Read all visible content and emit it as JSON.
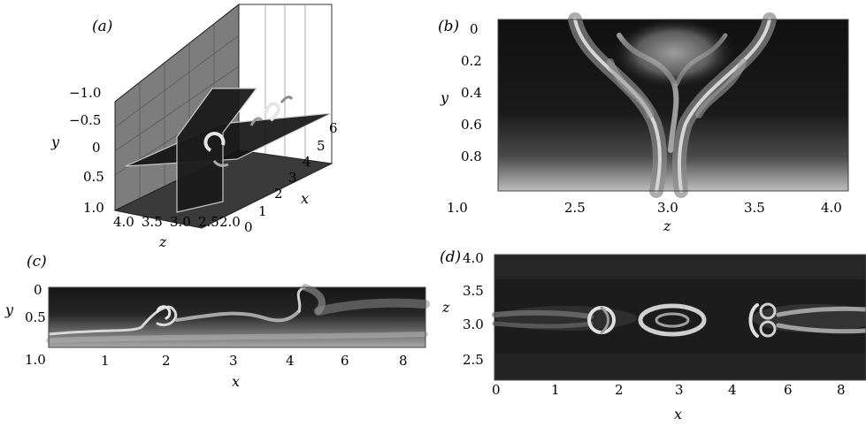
{
  "panels": {
    "a": {
      "label": "(a)",
      "y_label": "y",
      "y_ticks": [
        "−1.0",
        "−0.5",
        "0",
        "0.5",
        "1.0"
      ],
      "z_label": "z",
      "z_ticks": [
        "4.0",
        "3.5",
        "3.0",
        "2.5",
        "2.0"
      ],
      "x_label": "x",
      "x_ticks": [
        "0",
        "1",
        "2",
        "3",
        "4",
        "5",
        "6"
      ]
    },
    "b": {
      "label": "(b)",
      "y_label": "y",
      "y_ticks": [
        "0",
        "0.2",
        "0.4",
        "0.6",
        "0.8",
        "1.0"
      ],
      "x_label": "z",
      "x_ticks": [
        "2.5",
        "3.0",
        "3.5",
        "4.0"
      ]
    },
    "c": {
      "label": "(c)",
      "y_label": "y",
      "y_ticks": [
        "0",
        "0.5",
        "1.0"
      ],
      "x_label": "x",
      "x_ticks": [
        "1",
        "2",
        "3",
        "4",
        "6",
        "8"
      ]
    },
    "d": {
      "label": "(d)",
      "y_label": "z",
      "y_ticks": [
        "4.0",
        "3.5",
        "3.0",
        "2.5"
      ],
      "x_label": "x",
      "x_ticks": [
        "0",
        "1",
        "2",
        "3",
        "4",
        "6",
        "8"
      ]
    }
  }
}
